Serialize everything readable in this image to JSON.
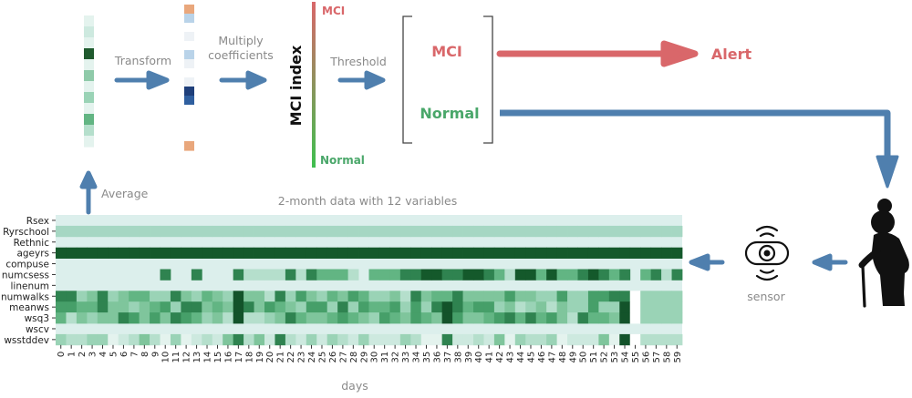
{
  "pipeline": {
    "transform_label": "Transform",
    "multiply_label_line1": "Multiply",
    "multiply_label_line2": "coefficients",
    "index_label": "MCI index",
    "index_top_label": "MCI",
    "index_bottom_label": "Normal",
    "threshold_label": "Threshold",
    "bracket_mci_label": "MCI",
    "bracket_normal_label": "Normal",
    "alert_label": "Alert",
    "average_label": "Average",
    "sensor_label": "sensor"
  },
  "heatmap": {
    "title": "2-month data with 12 variables",
    "xlabel": "days",
    "variables": [
      "Rsex",
      "Ryrschool",
      "Rethnic",
      "ageyrs",
      "compuse",
      "numcsess",
      "linenum",
      "numwalks",
      "meanws",
      "wsq3",
      "wscv",
      "wsstddev"
    ],
    "days": [
      "0",
      "1",
      "2",
      "3",
      "4",
      "5",
      "6",
      "7",
      "8",
      "9",
      "10",
      "11",
      "12",
      "13",
      "14",
      "15",
      "16",
      "17",
      "18",
      "19",
      "20",
      "21",
      "22",
      "23",
      "24",
      "25",
      "26",
      "27",
      "28",
      "29",
      "30",
      "31",
      "32",
      "33",
      "34",
      "35",
      "36",
      "37",
      "38",
      "39",
      "40",
      "41",
      "42",
      "43",
      "44",
      "45",
      "46",
      "47",
      "48",
      "49",
      "50",
      "51",
      "52",
      "53",
      "54",
      "55",
      "56",
      "57",
      "58",
      "59"
    ]
  },
  "colors": {
    "red": "#d9676a",
    "green": "#4aa76a",
    "blue_arrow": "#4f7fae",
    "gray_text": "#8a8a8a",
    "heatmap_light": "#dcefec",
    "heatmap_dark": "#14592b"
  },
  "icons": {
    "sensor": "sensor-icon",
    "person": "elderly-person-icon"
  }
}
